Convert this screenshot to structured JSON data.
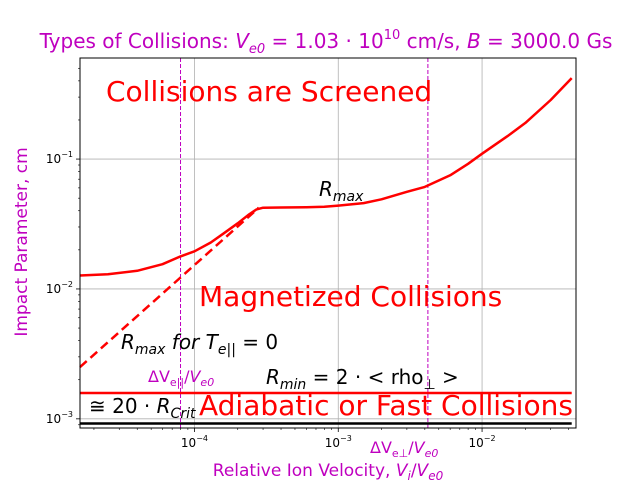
{
  "chart_data": {
    "type": "line",
    "title": {
      "prefix": "Types of Collisions: ",
      "v_var": "V",
      "v_sub": "e0",
      "v_val": " = 1.03 · 10",
      "v_exp": "10",
      "v_unit": " cm/s, ",
      "b_var": "B",
      "b_val": " = 3000.0 Gs"
    },
    "xlabel": {
      "text": "Relative Ion Velocity, ",
      "var": "V",
      "sub": "i",
      "slash": "/",
      "var2": "V",
      "sub2": "e0"
    },
    "ylabel": "Impact Parameter, cm",
    "xscale": "log",
    "yscale": "log",
    "xlim": [
      1.6e-05,
      0.045
    ],
    "ylim": [
      0.00085,
      0.6
    ],
    "grid": true,
    "x_ticks": [
      {
        "value": 0.0001,
        "base": "10",
        "exp": "−4"
      },
      {
        "value": 0.001,
        "base": "10",
        "exp": "−3"
      },
      {
        "value": 0.01,
        "base": "10",
        "exp": "−2"
      }
    ],
    "y_ticks": [
      {
        "value": 0.001,
        "base": "10",
        "exp": "−3"
      },
      {
        "value": 0.01,
        "base": "10",
        "exp": "−2"
      },
      {
        "value": 0.1,
        "base": "10",
        "exp": "−1"
      }
    ],
    "series": [
      {
        "style": "solid",
        "color": "#ff0000",
        "points": [
          [
            1.6e-05,
            0.0127
          ],
          [
            2.5e-05,
            0.013
          ],
          [
            4e-05,
            0.0138
          ],
          [
            6e-05,
            0.0155
          ],
          [
            8e-05,
            0.0178
          ],
          [
            0.0001,
            0.0195
          ],
          [
            0.00013,
            0.0228
          ],
          [
            0.00016,
            0.0268
          ],
          [
            0.0002,
            0.032
          ],
          [
            0.00024,
            0.0375
          ],
          [
            0.00027,
            0.041
          ],
          [
            0.0003,
            0.0422
          ],
          [
            0.0004,
            0.0424
          ],
          [
            0.0006,
            0.0426
          ],
          [
            0.0008,
            0.043
          ],
          [
            0.001,
            0.0438
          ],
          [
            0.0015,
            0.0458
          ],
          [
            0.002,
            0.049
          ],
          [
            0.003,
            0.056
          ],
          [
            0.004,
            0.061
          ],
          [
            0.006,
            0.075
          ],
          [
            0.008,
            0.092
          ],
          [
            0.01,
            0.11
          ],
          [
            0.015,
            0.15
          ],
          [
            0.02,
            0.19
          ],
          [
            0.03,
            0.285
          ],
          [
            0.042,
            0.42
          ]
        ]
      },
      {
        "style": "dashed",
        "color": "#ff0000",
        "points": [
          [
            1.6e-05,
            0.0025
          ],
          [
            0.00028,
            0.0422
          ]
        ]
      },
      {
        "style": "solid",
        "color": "#ff0000",
        "points": [
          [
            1.6e-05,
            0.00158
          ],
          [
            0.042,
            0.00158
          ]
        ]
      },
      {
        "style": "solid",
        "color": "#000000",
        "points": [
          [
            1.6e-05,
            0.00092
          ],
          [
            0.042,
            0.00092
          ]
        ]
      }
    ],
    "vlines": [
      {
        "x": 8e-05,
        "color": "#bf00bf",
        "style": "dashed"
      },
      {
        "x": 0.0042,
        "color": "#bf00bf",
        "style": "dashed"
      }
    ],
    "annotations": {
      "screened": "Collisions are Screened",
      "magnetized": "Magnetized Collisions",
      "adiabatic": "Adiabatic or Fast Collisions",
      "rmax": {
        "var": "R",
        "sub": "max"
      },
      "rmax_t": {
        "var": "R",
        "sub": "max",
        "mid": " for ",
        "t": "T",
        "tsub": "e||",
        "rest": " = 0"
      },
      "rmin": {
        "var": "R",
        "sub": "min",
        "rest": " = 2 · < rho",
        "sub2": "⊥",
        "end": " >"
      },
      "approx": {
        "pre": "≅ 20 · ",
        "var": "R",
        "sub": "Crit"
      },
      "dv_par": {
        "pre": "ΔV",
        "sub": "e||",
        "slash": "/",
        "var": "V",
        "sub2": "e0"
      },
      "dv_perp": {
        "pre": "ΔV",
        "sub": "e⊥",
        "slash": "/",
        "var": "V",
        "sub2": "e0"
      }
    }
  }
}
